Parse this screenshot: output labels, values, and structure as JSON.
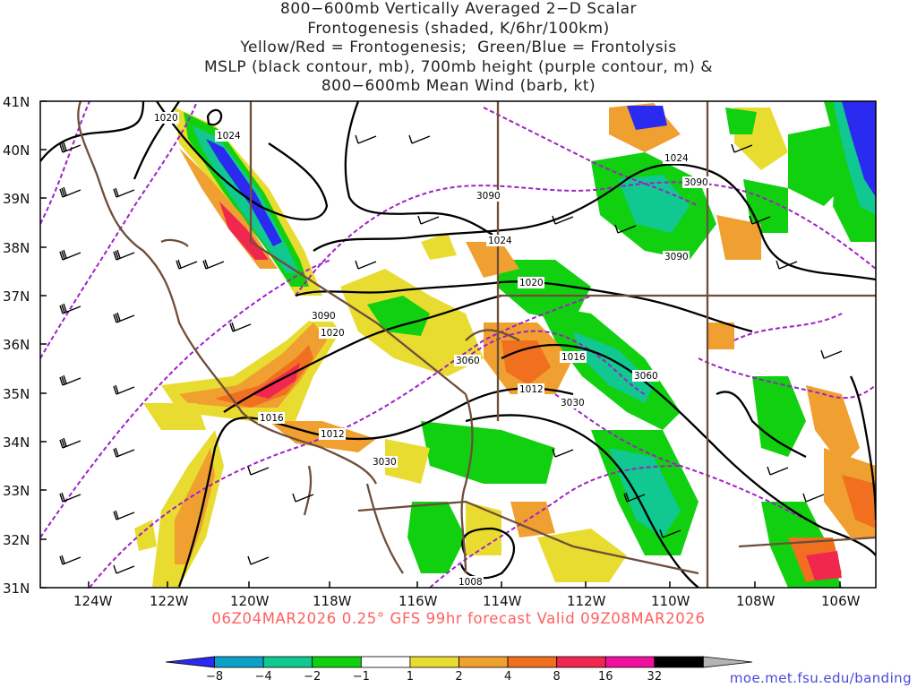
{
  "title": {
    "line1": "800−600mb Vertically Averaged 2−D Scalar",
    "line2": "Frontogenesis (shaded, K/6hr/100km)",
    "line3": "Yellow/Red = Frontogenesis;  Green/Blue = Frontolysis",
    "line4": "MSLP (black contour, mb), 700mb height (purple contour, m) &",
    "line5": "800−600mb Mean Wind (barb, kt)"
  },
  "axes": {
    "lat_labels": [
      "41N",
      "40N",
      "39N",
      "38N",
      "37N",
      "36N",
      "35N",
      "34N",
      "33N",
      "32N",
      "31N"
    ],
    "lon_labels": [
      "124W",
      "122W",
      "120W",
      "118W",
      "116W",
      "114W",
      "112W",
      "110W",
      "108W",
      "106W"
    ]
  },
  "valid_line": "06Z04MAR2026 0.25° GFS 99hr forecast Valid 09Z08MAR2026",
  "credit": "moe.met.fsu.edu/banding",
  "colorbar": {
    "ticks": [
      "−8",
      "−4",
      "−2",
      "−1",
      "1",
      "2",
      "4",
      "8",
      "16",
      "32"
    ],
    "colors": [
      "#2a2af0",
      "#0aa0c8",
      "#10c890",
      "#10d010",
      "#ffffff",
      "#e8dc30",
      "#f0a030",
      "#f07020",
      "#f02850",
      "#f010a0",
      "#000000",
      "#b4b4b4"
    ]
  },
  "mslp_labels": [
    "1020",
    "1024",
    "1020",
    "1016",
    "1012",
    "1012",
    "1016",
    "1020",
    "1024",
    "1024",
    "1008"
  ],
  "height_labels": [
    "3090",
    "3090",
    "3090",
    "3090",
    "3060",
    "3060",
    "3030",
    "3030"
  ],
  "colors": {
    "mslp": "#000000",
    "height": "#a020c8",
    "borders": "#6e4e3a",
    "valid": "#ff6060",
    "credit": "#4a4ad8"
  }
}
